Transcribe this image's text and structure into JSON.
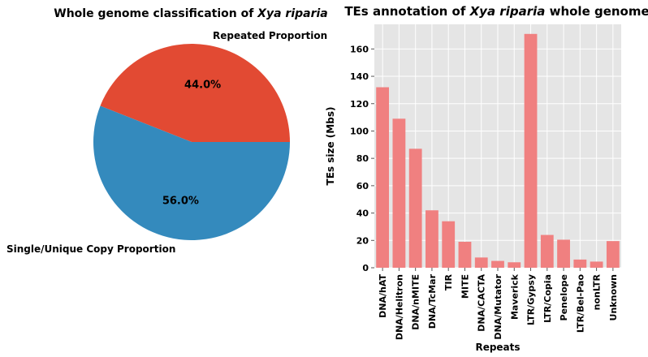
{
  "chart_data": [
    {
      "type": "pie",
      "title_prefix": "Whole genome classification of ",
      "title_italic": "Xya riparia",
      "slices": [
        {
          "label": "Repeated Proportion",
          "value": 44.0,
          "pct_label": "44.0%",
          "color": "#E24A33"
        },
        {
          "label": "Single/Unique Copy Proportion",
          "value": 56.0,
          "pct_label": "56.0%",
          "color": "#348ABD"
        }
      ]
    },
    {
      "type": "bar",
      "title_prefix": "TEs annotation of ",
      "title_italic": "Xya riparia",
      "title_suffix": " whole genome",
      "xlabel": "Repeats",
      "ylabel": "TEs size (Mbs)",
      "ylim": [
        0,
        178
      ],
      "yticks": [
        "0",
        "20",
        "40",
        "60",
        "80",
        "100",
        "120",
        "140",
        "160"
      ],
      "grid": true,
      "bar_color": "#F08080",
      "categories": [
        "DNA/hAT",
        "DNA/Helitron",
        "DNA/nMITE",
        "DNA/TcMar",
        "TIR",
        "MITE",
        "DNA/CACTA",
        "DNA/Mutator",
        "Maverick",
        "LTR/Gypsy",
        "LTR/Copia",
        "Penelope",
        "LTR/Bel-Pao",
        "nonLTR",
        "Unknown"
      ],
      "values": [
        132,
        109,
        87,
        42,
        34,
        19,
        7.5,
        5,
        4,
        171,
        24,
        20.5,
        6,
        4.5,
        19.5
      ]
    }
  ]
}
